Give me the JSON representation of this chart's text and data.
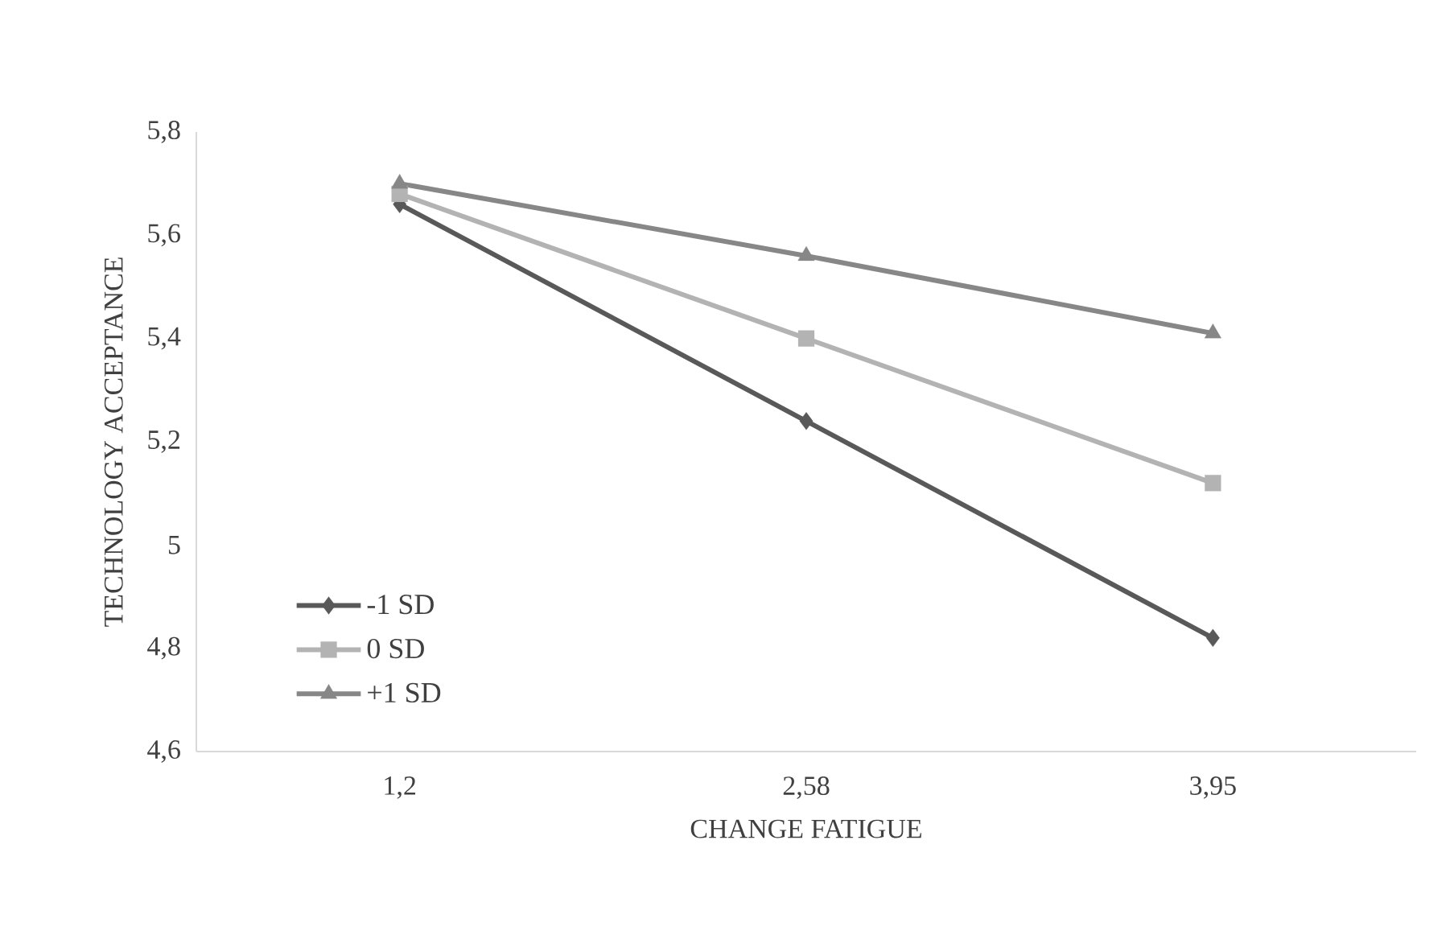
{
  "chart_data": {
    "type": "line",
    "xlabel": "CHANGE FATIGUE",
    "ylabel": "TECHNOLOGY ACCEPTANCE",
    "categories": [
      "1,2",
      "2,58",
      "3,95"
    ],
    "series": [
      {
        "name": "-1 SD",
        "color": "#595959",
        "marker": "diamond",
        "values": [
          5.66,
          5.24,
          4.82
        ]
      },
      {
        "name": "0 SD",
        "color": "#b3b3b3",
        "marker": "square",
        "values": [
          5.68,
          5.4,
          5.12
        ]
      },
      {
        "name": "+1 SD",
        "color": "#878787",
        "marker": "triangle",
        "values": [
          5.7,
          5.56,
          5.41
        ]
      }
    ],
    "ylim": [
      4.6,
      5.8
    ],
    "yticks": [
      {
        "value": 4.6,
        "label": "4,6"
      },
      {
        "value": 4.8,
        "label": "4,8"
      },
      5,
      {
        "value": 5.2,
        "label": "5,2"
      },
      {
        "value": 5.4,
        "label": "5,4"
      },
      {
        "value": 5.6,
        "label": "5,6"
      },
      {
        "value": 5.8,
        "label": "5,8"
      }
    ],
    "grid": false,
    "legend": "bottom left"
  }
}
